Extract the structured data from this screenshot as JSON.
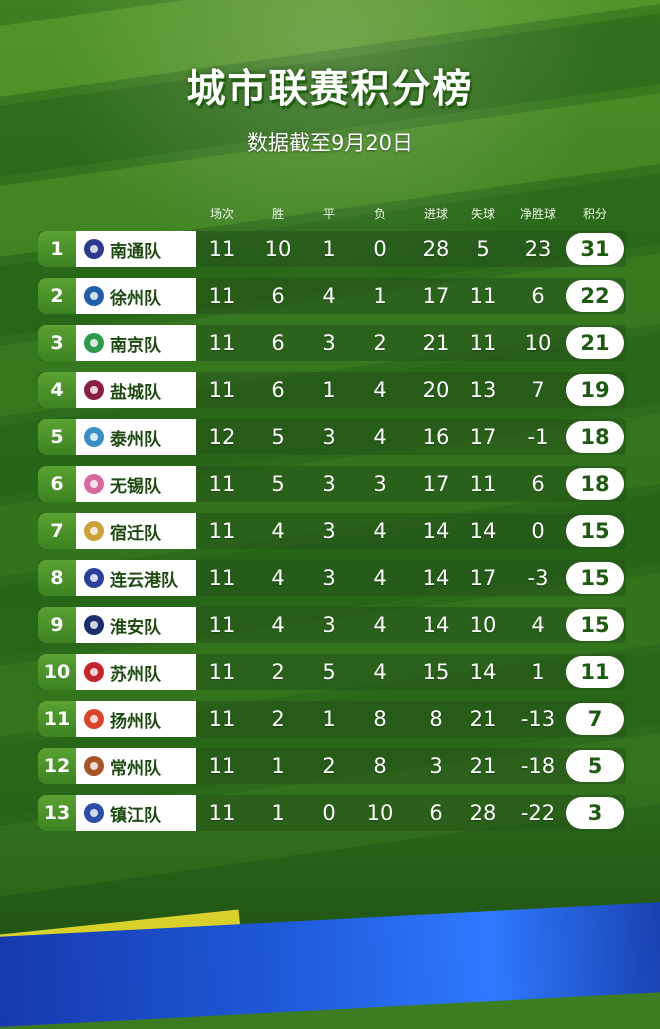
{
  "title": "城市联赛积分榜",
  "subtitle": "数据截至9月20日",
  "columns": [
    "场次",
    "胜",
    "平",
    "负",
    "进球",
    "失球",
    "净胜球",
    "积分"
  ],
  "rows": [
    {
      "rank": "1",
      "team": "南通队",
      "played": "11",
      "won": "10",
      "drawn": "1",
      "lost": "0",
      "gf": "28",
      "ga": "5",
      "gd": "23",
      "pts": "31",
      "logo_color": "#2d3b8f"
    },
    {
      "rank": "2",
      "team": "徐州队",
      "played": "11",
      "won": "6",
      "drawn": "4",
      "lost": "1",
      "gf": "17",
      "ga": "11",
      "gd": "6",
      "pts": "22",
      "logo_color": "#1f5fa8"
    },
    {
      "rank": "3",
      "team": "南京队",
      "played": "11",
      "won": "6",
      "drawn": "3",
      "lost": "2",
      "gf": "21",
      "ga": "11",
      "gd": "10",
      "pts": "21",
      "logo_color": "#2f9a4c"
    },
    {
      "rank": "4",
      "team": "盐城队",
      "played": "11",
      "won": "6",
      "drawn": "1",
      "lost": "4",
      "gf": "20",
      "ga": "13",
      "gd": "7",
      "pts": "19",
      "logo_color": "#8a1f3f"
    },
    {
      "rank": "5",
      "team": "泰州队",
      "played": "12",
      "won": "5",
      "drawn": "3",
      "lost": "4",
      "gf": "16",
      "ga": "17",
      "gd": "-1",
      "pts": "18",
      "logo_color": "#3a8fc7"
    },
    {
      "rank": "6",
      "team": "无锡队",
      "played": "11",
      "won": "5",
      "drawn": "3",
      "lost": "3",
      "gf": "17",
      "ga": "11",
      "gd": "6",
      "pts": "18",
      "logo_color": "#d86aa0"
    },
    {
      "rank": "7",
      "team": "宿迁队",
      "played": "11",
      "won": "4",
      "drawn": "3",
      "lost": "4",
      "gf": "14",
      "ga": "14",
      "gd": "0",
      "pts": "15",
      "logo_color": "#c9a23a"
    },
    {
      "rank": "8",
      "team": "连云港队",
      "played": "11",
      "won": "4",
      "drawn": "3",
      "lost": "4",
      "gf": "14",
      "ga": "17",
      "gd": "-3",
      "pts": "15",
      "logo_color": "#2a3f9a"
    },
    {
      "rank": "9",
      "team": "淮安队",
      "played": "11",
      "won": "4",
      "drawn": "3",
      "lost": "4",
      "gf": "14",
      "ga": "10",
      "gd": "4",
      "pts": "15",
      "logo_color": "#1b2f6e"
    },
    {
      "rank": "10",
      "team": "苏州队",
      "played": "11",
      "won": "2",
      "drawn": "5",
      "lost": "4",
      "gf": "15",
      "ga": "14",
      "gd": "1",
      "pts": "11",
      "logo_color": "#c4262e"
    },
    {
      "rank": "11",
      "team": "扬州队",
      "played": "11",
      "won": "2",
      "drawn": "1",
      "lost": "8",
      "gf": "8",
      "ga": "21",
      "gd": "-13",
      "pts": "7",
      "logo_color": "#d8452a"
    },
    {
      "rank": "12",
      "team": "常州队",
      "played": "11",
      "won": "1",
      "drawn": "2",
      "lost": "8",
      "gf": "3",
      "ga": "21",
      "gd": "-18",
      "pts": "5",
      "logo_color": "#a8532a"
    },
    {
      "rank": "13",
      "team": "镇江队",
      "played": "11",
      "won": "1",
      "drawn": "0",
      "lost": "10",
      "gf": "6",
      "ga": "28",
      "gd": "-22",
      "pts": "3",
      "logo_color": "#2b4fa8"
    }
  ]
}
